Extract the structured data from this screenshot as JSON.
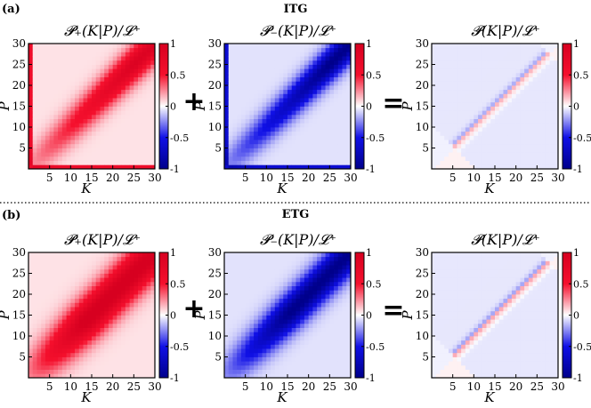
{
  "figure": {
    "rows": [
      {
        "panel_label": "(a)",
        "title": "ITG",
        "op_plus": "+",
        "op_equals": "="
      },
      {
        "panel_label": "(b)",
        "title": "ETG",
        "op_plus": "+",
        "op_equals": "="
      }
    ]
  },
  "chart_data": [
    {
      "type": "heatmap",
      "row": "a",
      "title": "𝓟₊(K|P)/𝓛⁺",
      "xlabel": "K",
      "ylabel": "P",
      "xticks": [
        5,
        10,
        15,
        20,
        25,
        30
      ],
      "yticks": [
        5,
        10,
        15,
        20,
        25,
        30
      ],
      "xlim": [
        0,
        30
      ],
      "ylim": [
        0,
        30
      ],
      "colorbar": {
        "range": [
          -1,
          1
        ],
        "ticks": [
          "1",
          "0.5",
          "0",
          "-0.5",
          "-1"
        ],
        "colors": [
          "#00008b",
          "#1010e6",
          "#ffffff",
          "#f5102d",
          "#d70020"
        ]
      },
      "field": {
        "sign": 1,
        "amplitude": 0.85,
        "ridge_width": 3.2,
        "growth": 0.5,
        "edge_strip": true
      }
    },
    {
      "type": "heatmap",
      "row": "a",
      "title": "𝓟₋(K|P)/𝓛⁺",
      "xlabel": "K",
      "ylabel": "P",
      "xticks": [
        5,
        10,
        15,
        20,
        25,
        30
      ],
      "yticks": [
        5,
        10,
        15,
        20,
        25,
        30
      ],
      "xlim": [
        0,
        30
      ],
      "ylim": [
        0,
        30
      ],
      "colorbar": {
        "range": [
          -1,
          1
        ],
        "ticks": [
          "1",
          "0.5",
          "0",
          "-0.5",
          "-1"
        ],
        "colors": [
          "#00008b",
          "#1010e6",
          "#ffffff",
          "#f5102d",
          "#d70020"
        ]
      },
      "field": {
        "sign": -1,
        "amplitude": 0.95,
        "ridge_width": 3.0,
        "growth": 0.5,
        "edge_strip": true
      }
    },
    {
      "type": "heatmap",
      "row": "a",
      "title": "𝓟(K|P)/𝓛⁺",
      "xlabel": "K",
      "ylabel": "P",
      "xticks": [
        5,
        10,
        15,
        20,
        25,
        30
      ],
      "yticks": [
        5,
        10,
        15,
        20,
        25,
        30
      ],
      "xlim": [
        0,
        30
      ],
      "ylim": [
        0,
        30
      ],
      "colorbar": {
        "range": [
          -1,
          1
        ],
        "ticks": [
          "1",
          "0.5",
          "0",
          "-0.5",
          "-1"
        ],
        "colors": [
          "#00008b",
          "#1010e6",
          "#ffffff",
          "#f5102d",
          "#d70020"
        ]
      },
      "field": {
        "sign": 0,
        "amplitude": 0.22,
        "ridge_width": 1.1,
        "growth": 0.3,
        "edge_strip": false
      }
    },
    {
      "type": "heatmap",
      "row": "b",
      "title": "𝓟₊(K|P)/𝓛⁺",
      "xlabel": "K",
      "ylabel": "P",
      "xticks": [
        5,
        10,
        15,
        20,
        25,
        30
      ],
      "yticks": [
        5,
        10,
        15,
        20,
        25,
        30
      ],
      "xlim": [
        0,
        30
      ],
      "ylim": [
        0,
        30
      ],
      "colorbar": {
        "range": [
          -1,
          1
        ],
        "ticks": [
          "1",
          "0.5",
          "0",
          "-0.5",
          "-1"
        ],
        "colors": [
          "#00008b",
          "#1010e6",
          "#ffffff",
          "#f5102d",
          "#d70020"
        ]
      },
      "field": {
        "sign": 1,
        "amplitude": 1.0,
        "ridge_width": 4.2,
        "growth": 0.9,
        "edge_strip": false
      }
    },
    {
      "type": "heatmap",
      "row": "b",
      "title": "𝓟₋(K|P)/𝓛⁺",
      "xlabel": "K",
      "ylabel": "P",
      "xticks": [
        5,
        10,
        15,
        20,
        25,
        30
      ],
      "yticks": [
        5,
        10,
        15,
        20,
        25,
        30
      ],
      "xlim": [
        0,
        30
      ],
      "ylim": [
        0,
        30
      ],
      "colorbar": {
        "range": [
          -1,
          1
        ],
        "ticks": [
          "1",
          "0.5",
          "0",
          "-0.5",
          "-1"
        ],
        "colors": [
          "#00008b",
          "#1010e6",
          "#ffffff",
          "#f5102d",
          "#d70020"
        ]
      },
      "field": {
        "sign": -1,
        "amplitude": 0.95,
        "ridge_width": 3.6,
        "growth": 0.8,
        "edge_strip": false
      }
    },
    {
      "type": "heatmap",
      "row": "b",
      "title": "𝓟(K|P)/𝓛⁺",
      "xlabel": "K",
      "ylabel": "P",
      "xticks": [
        5,
        10,
        15,
        20,
        25,
        30
      ],
      "yticks": [
        5,
        10,
        15,
        20,
        25,
        30
      ],
      "xlim": [
        0,
        30
      ],
      "ylim": [
        0,
        30
      ],
      "colorbar": {
        "range": [
          -1,
          1
        ],
        "ticks": [
          "1",
          "0.5",
          "0",
          "-0.5",
          "-1"
        ],
        "colors": [
          "#00008b",
          "#1010e6",
          "#ffffff",
          "#f5102d",
          "#d70020"
        ]
      },
      "field": {
        "sign": 0,
        "amplitude": 0.25,
        "ridge_width": 1.1,
        "growth": 0.3,
        "edge_strip": false
      }
    }
  ]
}
